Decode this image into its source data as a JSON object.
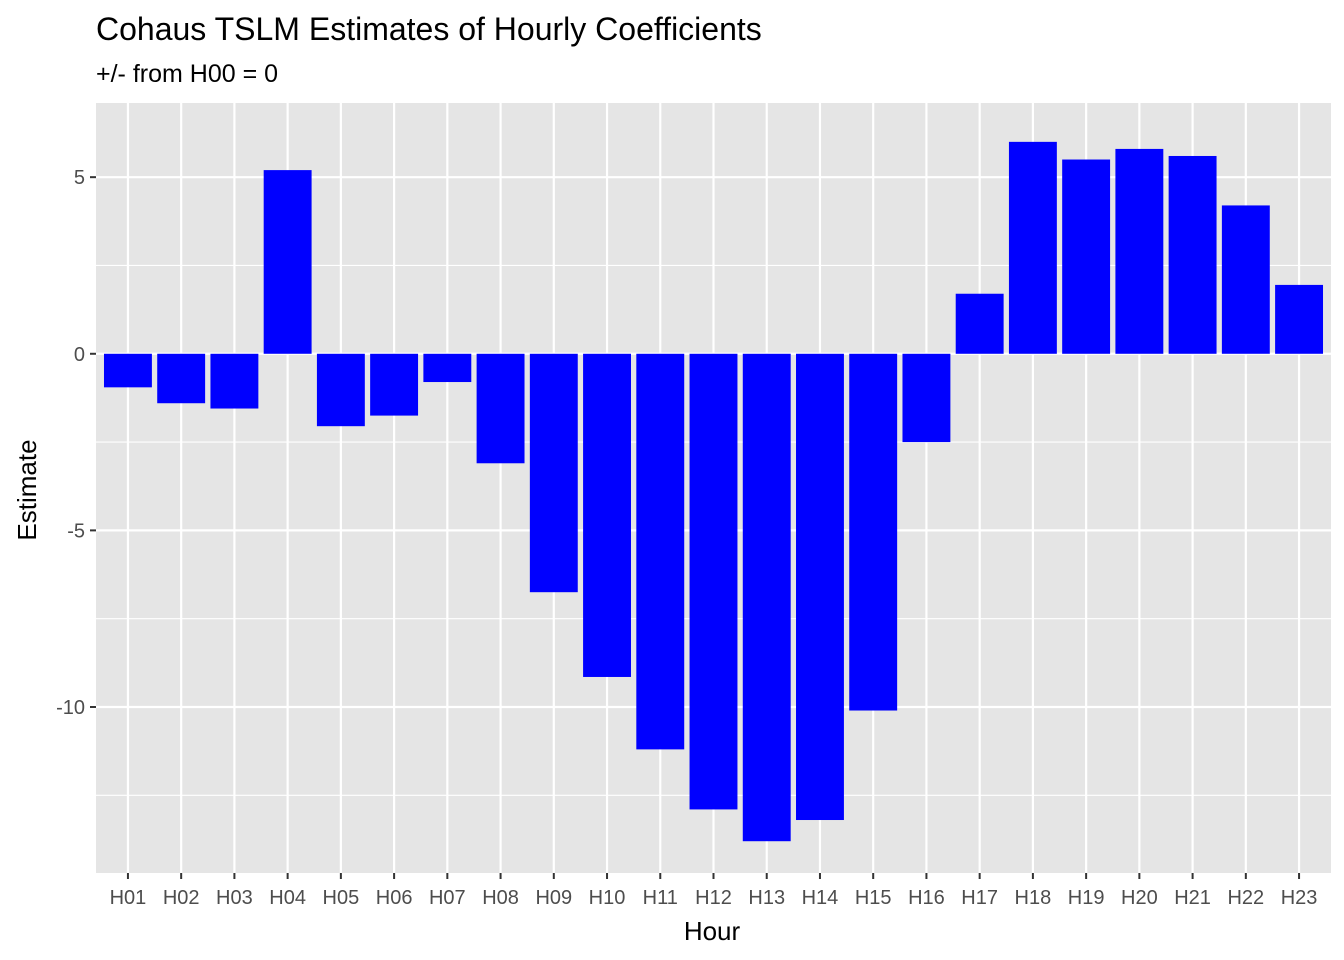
{
  "chart_data": {
    "type": "bar",
    "title": "Cohaus TSLM Estimates of Hourly Coefficients",
    "subtitle": "+/- from H00 = 0",
    "xlabel": "Hour",
    "ylabel": "Estimate",
    "categories": [
      "H01",
      "H02",
      "H03",
      "H04",
      "H05",
      "H06",
      "H07",
      "H08",
      "H09",
      "H10",
      "H11",
      "H12",
      "H13",
      "H14",
      "H15",
      "H16",
      "H17",
      "H18",
      "H19",
      "H20",
      "H21",
      "H22",
      "H23"
    ],
    "values": [
      -0.95,
      -1.4,
      -1.55,
      5.2,
      -2.05,
      -1.75,
      -0.8,
      -3.1,
      -6.75,
      -9.15,
      -11.2,
      -12.9,
      -13.8,
      -13.2,
      -10.1,
      -2.5,
      1.7,
      6.0,
      5.5,
      5.8,
      5.6,
      4.2,
      1.95
    ],
    "yticks": [
      5,
      0,
      -5,
      -10
    ],
    "ytick_labels": [
      "5",
      "0",
      "-5",
      "-10"
    ],
    "ylim": [
      -14.7,
      7.1
    ],
    "bar_color": "#0000ff",
    "panel_background": "#e5e5e5",
    "grid_color": "#ffffff",
    "grid": true,
    "legend": "none"
  }
}
